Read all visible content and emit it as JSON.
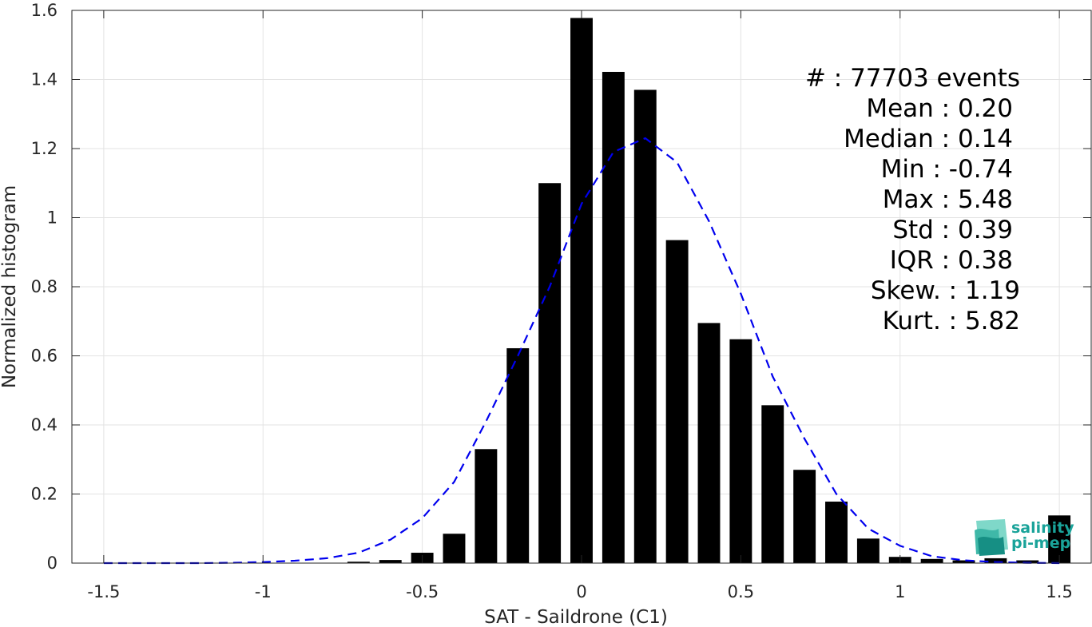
{
  "chart_data": {
    "type": "bar",
    "xlabel": "SAT - Saildrone (C1)",
    "ylabel": "Normalized histogram",
    "xlim": [
      -1.6,
      1.6
    ],
    "ylim": [
      0,
      1.6
    ],
    "xticks": [
      -1.5,
      -1,
      -0.5,
      0,
      0.5,
      1,
      1.5
    ],
    "xtick_labels": [
      "-1.5",
      "-1",
      "-0.5",
      "0",
      "0.5",
      "1",
      "1.5"
    ],
    "yticks": [
      0,
      0.2,
      0.4,
      0.6,
      0.8,
      1,
      1.2,
      1.4,
      1.6
    ],
    "ytick_labels": [
      "0",
      "0.2",
      "0.4",
      "0.6",
      "0.8",
      "1",
      "1.2",
      "1.4",
      "1.6"
    ],
    "grid": true,
    "bar_color": "#000000",
    "curve_color": "#0000ee",
    "histogram": {
      "x": [
        -0.7,
        -0.6,
        -0.5,
        -0.4,
        -0.3,
        -0.2,
        -0.1,
        0.0,
        0.1,
        0.2,
        0.3,
        0.4,
        0.5,
        0.6,
        0.7,
        0.8,
        0.9,
        1.0,
        1.1,
        1.2,
        1.3,
        1.4,
        1.5
      ],
      "values": [
        0.004,
        0.009,
        0.03,
        0.085,
        0.33,
        0.622,
        1.1,
        1.578,
        1.422,
        1.37,
        0.935,
        0.695,
        0.648,
        0.457,
        0.27,
        0.178,
        0.071,
        0.018,
        0.012,
        0.008,
        0.014,
        0.008,
        0.138
      ]
    },
    "gaussian_fit": {
      "style": "dashed",
      "x": [
        -1.5,
        -1.4,
        -1.3,
        -1.2,
        -1.1,
        -1.0,
        -0.9,
        -0.8,
        -0.7,
        -0.6,
        -0.5,
        -0.4,
        -0.3,
        -0.2,
        -0.1,
        0.0,
        0.1,
        0.2,
        0.3,
        0.4,
        0.5,
        0.6,
        0.7,
        0.8,
        0.9,
        1.0,
        1.1,
        1.2,
        1.3,
        1.4,
        1.5
      ],
      "values": [
        0.0,
        0.0,
        0.0,
        0.0,
        0.001,
        0.003,
        0.007,
        0.014,
        0.03,
        0.068,
        0.13,
        0.235,
        0.41,
        0.6,
        0.8,
        1.04,
        1.19,
        1.23,
        1.16,
        0.99,
        0.78,
        0.54,
        0.36,
        0.2,
        0.1,
        0.05,
        0.02,
        0.008,
        0.003,
        0.001,
        0.0
      ]
    }
  },
  "stats": {
    "lines": [
      "#  : 77703 events",
      "Mean : 0.20",
      "Median : 0.14",
      "Min : -0.74",
      "Max : 5.48",
      "Std : 0.39",
      "IQR : 0.38",
      "Skew. : 1.19",
      "Kurt. : 5.82"
    ]
  },
  "logo": {
    "line1": "salinity",
    "line2": "pi-mep",
    "color": "#1aa39a"
  }
}
